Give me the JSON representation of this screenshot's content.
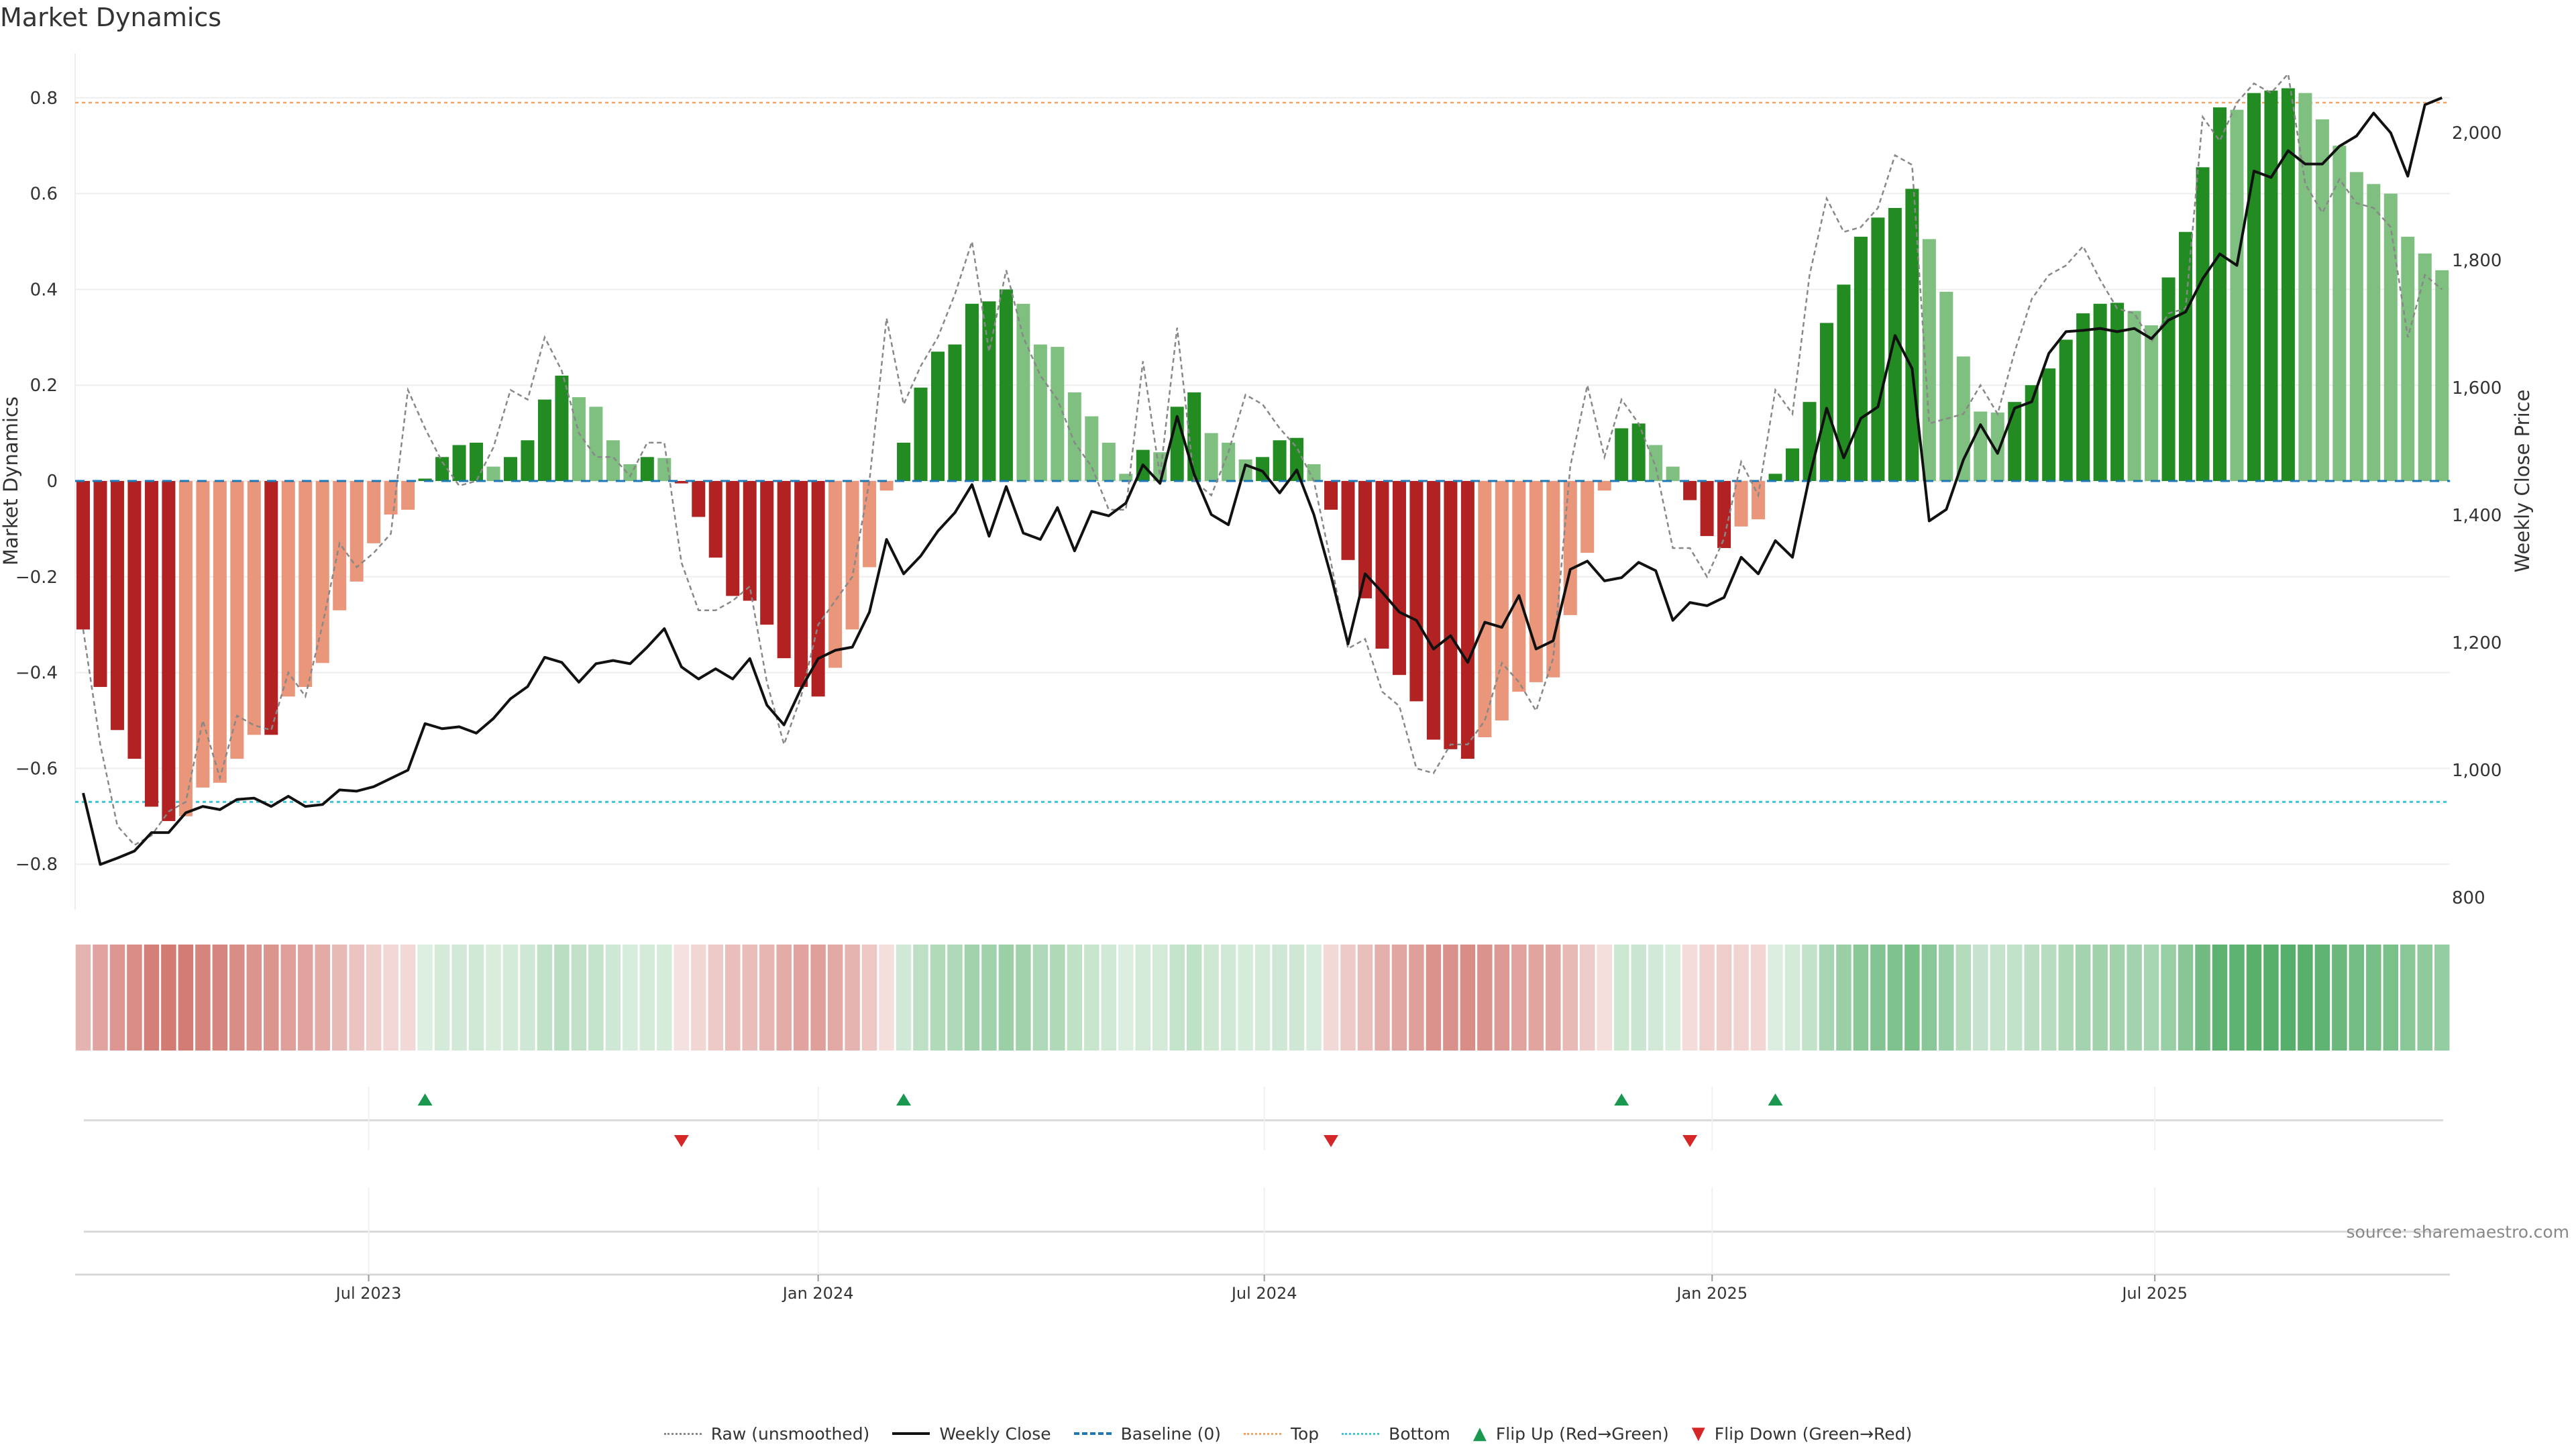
{
  "title": "Market Dynamics",
  "source": "source: sharemaestro.com",
  "legend": {
    "raw": "Raw (unsmoothed)",
    "close": "Weekly Close",
    "baseline": "Baseline (0)",
    "top": "Top",
    "bottom": "Bottom",
    "flip_up": "Flip Up (Red→Green)",
    "flip_down": "Flip Down (Green→Red)"
  },
  "colors": {
    "dark_red": "#b22222",
    "light_red": "#e9967a",
    "dark_green": "#228b22",
    "light_green": "#7fbf7f",
    "raw": "#888888",
    "close": "#111111",
    "baseline": "#1f77b4",
    "top": "#f4a460",
    "bottom": "#40c4d8",
    "flip_up": "#1a9850",
    "flip_down": "#d62728"
  },
  "chart_data": {
    "type": "bar",
    "title": "Market Dynamics",
    "ylabel": "Market Dynamics",
    "y2label": "Weekly Close Price",
    "ylim": [
      -0.89,
      0.9
    ],
    "y2lim": [
      800,
      2100
    ],
    "yticks": [
      -0.8,
      -0.6,
      -0.4,
      -0.2,
      0,
      0.2,
      0.4,
      0.6,
      0.8
    ],
    "ytick_labels": [
      "−0.8",
      "−0.6",
      "−0.4",
      "−0.2",
      "0",
      "0.2",
      "0.4",
      "0.6",
      "0.8"
    ],
    "y2ticks": [
      800,
      1000,
      1200,
      1400,
      1600,
      1800,
      2000
    ],
    "y2tick_labels": [
      "800",
      "1,000",
      "1,200",
      "1,400",
      "1,600",
      "1,800",
      "2,000"
    ],
    "xticks": [
      16.7,
      43.0,
      69.1,
      95.3,
      121.2
    ],
    "xtick_labels": [
      "Jul 2023",
      "Jan 2024",
      "Jul 2024",
      "Jan 2025",
      "Jul 2025"
    ],
    "top_level": 0.79,
    "bottom_level": -0.67,
    "baseline": 0,
    "dynamics": [
      -0.31,
      -0.43,
      -0.52,
      -0.58,
      -0.68,
      -0.71,
      -0.7,
      -0.64,
      -0.63,
      -0.58,
      -0.53,
      -0.53,
      -0.45,
      -0.43,
      -0.38,
      -0.27,
      -0.21,
      -0.13,
      -0.07,
      -0.06,
      0.005,
      0.05,
      0.075,
      0.08,
      0.03,
      0.05,
      0.085,
      0.17,
      0.22,
      0.175,
      0.155,
      0.085,
      0.035,
      0.05,
      0.048,
      -0.005,
      -0.075,
      -0.16,
      -0.24,
      -0.25,
      -0.3,
      -0.37,
      -0.43,
      -0.45,
      -0.39,
      -0.31,
      -0.18,
      -0.02,
      0.08,
      0.195,
      0.27,
      0.285,
      0.37,
      0.375,
      0.4,
      0.37,
      0.285,
      0.28,
      0.185,
      0.135,
      0.08,
      0.015,
      0.065,
      0.06,
      0.155,
      0.185,
      0.1,
      0.08,
      0.045,
      0.05,
      0.085,
      0.09,
      0.035,
      -0.06,
      -0.165,
      -0.245,
      -0.35,
      -0.405,
      -0.46,
      -0.54,
      -0.56,
      -0.58,
      -0.535,
      -0.5,
      -0.44,
      -0.42,
      -0.41,
      -0.28,
      -0.15,
      -0.02,
      0.11,
      0.12,
      0.075,
      0.03,
      -0.04,
      -0.115,
      -0.14,
      -0.095,
      -0.08,
      0.015,
      0.068,
      0.165,
      0.33,
      0.41,
      0.51,
      0.55,
      0.57,
      0.61,
      0.505,
      0.395,
      0.26,
      0.145,
      0.143,
      0.165,
      0.2,
      0.235,
      0.295,
      0.35,
      0.37,
      0.372,
      0.355,
      0.325,
      0.425,
      0.52,
      0.655,
      0.78,
      0.775,
      0.81,
      0.815,
      0.82,
      0.81,
      0.755,
      0.7,
      0.645,
      0.62,
      0.6,
      0.51,
      0.475,
      0.44
    ],
    "raw": [
      -0.31,
      -0.55,
      -0.72,
      -0.76,
      -0.74,
      -0.69,
      -0.67,
      -0.5,
      -0.62,
      -0.49,
      -0.51,
      -0.52,
      -0.4,
      -0.45,
      -0.3,
      -0.13,
      -0.18,
      -0.15,
      -0.11,
      0.19,
      0.11,
      0.04,
      -0.01,
      0.0,
      0.07,
      0.19,
      0.17,
      0.3,
      0.23,
      0.1,
      0.05,
      0.05,
      0.01,
      0.08,
      0.08,
      -0.17,
      -0.27,
      -0.27,
      -0.25,
      -0.22,
      -0.42,
      -0.55,
      -0.45,
      -0.3,
      -0.25,
      -0.2,
      0.0,
      0.34,
      0.16,
      0.24,
      0.3,
      0.39,
      0.5,
      0.27,
      0.44,
      0.3,
      0.22,
      0.17,
      0.08,
      0.03,
      -0.06,
      -0.06,
      0.25,
      0.01,
      0.32,
      0.0,
      -0.03,
      0.06,
      0.18,
      0.16,
      0.11,
      0.07,
      0.0,
      -0.17,
      -0.35,
      -0.33,
      -0.44,
      -0.47,
      -0.6,
      -0.61,
      -0.55,
      -0.55,
      -0.5,
      -0.38,
      -0.42,
      -0.48,
      -0.37,
      0.03,
      0.2,
      0.05,
      0.17,
      0.12,
      0.03,
      -0.14,
      -0.14,
      -0.2,
      -0.12,
      0.04,
      -0.03,
      0.19,
      0.14,
      0.43,
      0.59,
      0.52,
      0.53,
      0.57,
      0.68,
      0.66,
      0.12,
      0.13,
      0.14,
      0.2,
      0.14,
      0.27,
      0.38,
      0.43,
      0.45,
      0.49,
      0.42,
      0.36,
      0.35,
      0.29,
      0.35,
      0.36,
      0.76,
      0.71,
      0.79,
      0.83,
      0.81,
      0.85,
      0.62,
      0.56,
      0.63,
      0.58,
      0.57,
      0.53,
      0.3,
      0.43,
      0.4
    ],
    "close": [
      964,
      852,
      862,
      873,
      902,
      902,
      933,
      943,
      938,
      954,
      956,
      943,
      959,
      943,
      946,
      969,
      967,
      974,
      987,
      1000,
      1073,
      1065,
      1068,
      1058,
      1081,
      1112,
      1131,
      1177,
      1169,
      1138,
      1167,
      1172,
      1167,
      1193,
      1222,
      1162,
      1143,
      1159,
      1143,
      1175,
      1102,
      1071,
      1128,
      1175,
      1188,
      1193,
      1248,
      1362,
      1308,
      1336,
      1375,
      1404,
      1448,
      1367,
      1445,
      1372,
      1362,
      1412,
      1344,
      1406,
      1399,
      1419,
      1479,
      1450,
      1555,
      1464,
      1401,
      1385,
      1479,
      1469,
      1435,
      1471,
      1401,
      1305,
      1198,
      1308,
      1279,
      1248,
      1235,
      1190,
      1211,
      1169,
      1232,
      1224,
      1274,
      1190,
      1203,
      1315,
      1328,
      1297,
      1302,
      1326,
      1313,
      1235,
      1263,
      1258,
      1271,
      1334,
      1308,
      1360,
      1334,
      1461,
      1568,
      1490,
      1552,
      1570,
      1682,
      1630,
      1391,
      1409,
      1487,
      1542,
      1497,
      1568,
      1578,
      1654,
      1688,
      1690,
      1693,
      1688,
      1693,
      1677,
      1706,
      1719,
      1771,
      1810,
      1792,
      1940,
      1930,
      1972,
      1951,
      1951,
      1979,
      1995,
      2031,
      2000,
      1932,
      2044,
      2055
    ],
    "flip_up": [
      20,
      48,
      90,
      99
    ],
    "flip_down": [
      35,
      73,
      94
    ]
  }
}
